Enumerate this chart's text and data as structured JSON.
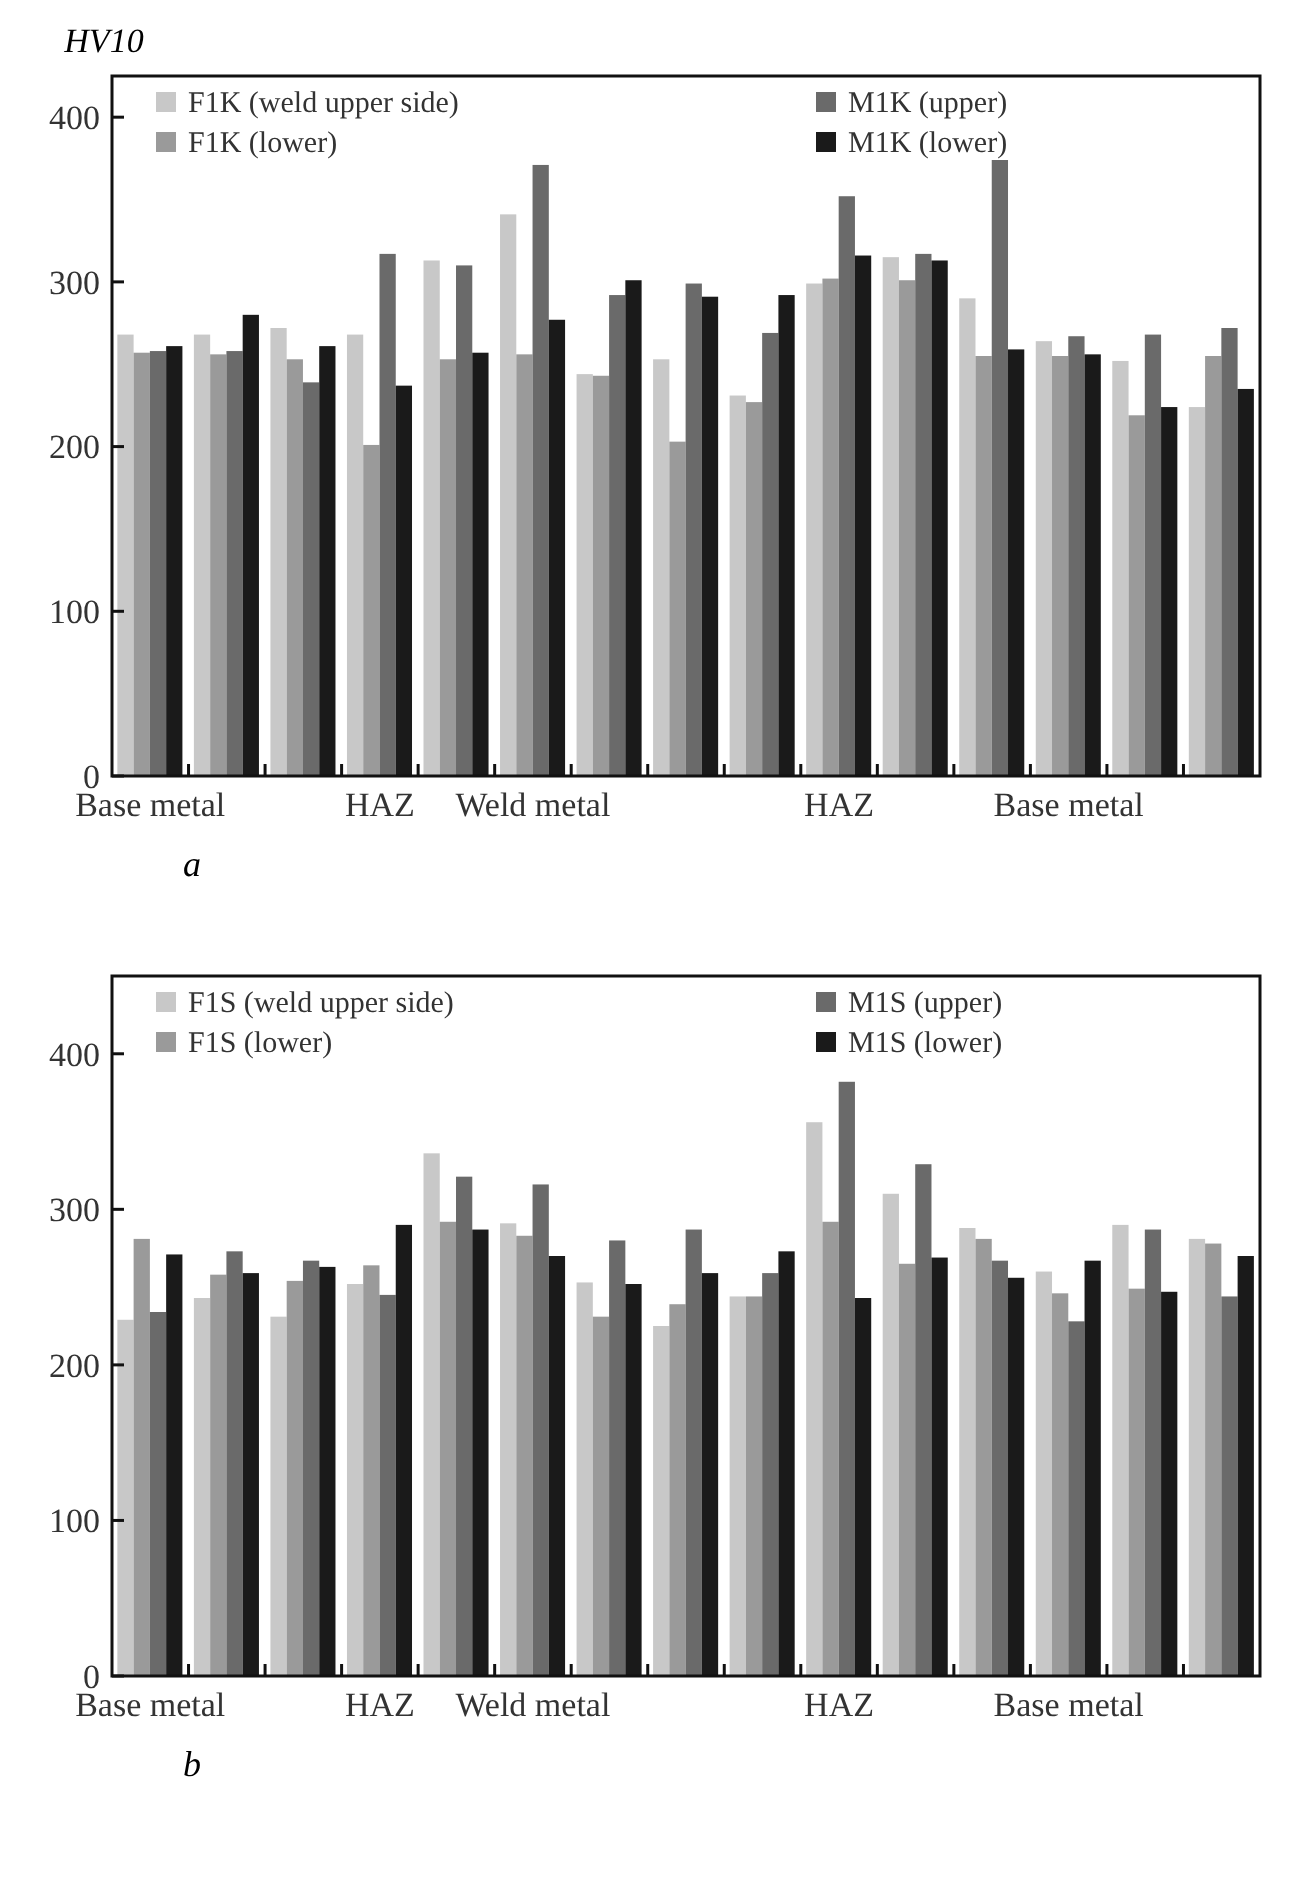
{
  "chart_data": [
    {
      "type": "bar",
      "ylabel": "HV10",
      "annotations": [
        "a"
      ],
      "categories": [
        "Base metal",
        null,
        null,
        "HAZ",
        null,
        "Weld metal",
        null,
        null,
        null,
        "HAZ",
        null,
        null,
        "Base metal",
        null,
        null
      ],
      "ylim": [
        0,
        425
      ],
      "yticks": [
        0,
        100,
        200,
        300,
        400
      ],
      "legend": "top",
      "series": [
        {
          "name": "F1K (weld upper side)",
          "color": "#c8c8c8",
          "values": [
            268,
            268,
            272,
            268,
            313,
            341,
            244,
            253,
            231,
            299,
            315,
            290,
            264,
            252,
            224
          ]
        },
        {
          "name": "F1K (lower)",
          "color": "#9a9a9a",
          "values": [
            257,
            256,
            253,
            201,
            253,
            256,
            243,
            203,
            227,
            302,
            301,
            255,
            255,
            219,
            255
          ]
        },
        {
          "name": "M1K (upper)",
          "color": "#6a6a6a",
          "values": [
            258,
            258,
            239,
            317,
            310,
            371,
            292,
            299,
            269,
            352,
            317,
            374,
            267,
            268,
            272
          ]
        },
        {
          "name": "M1K (lower)",
          "color": "#1a1a1a",
          "values": [
            261,
            280,
            261,
            237,
            257,
            277,
            301,
            291,
            292,
            316,
            313,
            259,
            256,
            224,
            235
          ]
        }
      ]
    },
    {
      "type": "bar",
      "annotations": [
        "b"
      ],
      "categories": [
        "Base metal",
        null,
        null,
        "HAZ",
        null,
        "Weld metal",
        null,
        null,
        null,
        "HAZ",
        null,
        null,
        "Base metal",
        null,
        null
      ],
      "ylim": [
        0,
        450
      ],
      "yticks": [
        0,
        100,
        200,
        300,
        400
      ],
      "legend": "top",
      "series": [
        {
          "name": "F1S (weld upper side)",
          "color": "#c8c8c8",
          "values": [
            229,
            243,
            231,
            252,
            336,
            291,
            253,
            225,
            244,
            356,
            310,
            288,
            260,
            290,
            281
          ]
        },
        {
          "name": "F1S (lower)",
          "color": "#9a9a9a",
          "values": [
            281,
            258,
            254,
            264,
            292,
            283,
            231,
            239,
            244,
            292,
            265,
            281,
            246,
            249,
            278
          ]
        },
        {
          "name": "M1S (upper)",
          "color": "#6a6a6a",
          "values": [
            234,
            273,
            267,
            245,
            321,
            316,
            280,
            287,
            259,
            382,
            329,
            267,
            228,
            287,
            244
          ]
        },
        {
          "name": "M1S (lower)",
          "color": "#1a1a1a",
          "values": [
            271,
            259,
            263,
            290,
            287,
            270,
            252,
            259,
            273,
            243,
            269,
            256,
            267,
            247,
            270
          ]
        }
      ]
    }
  ]
}
